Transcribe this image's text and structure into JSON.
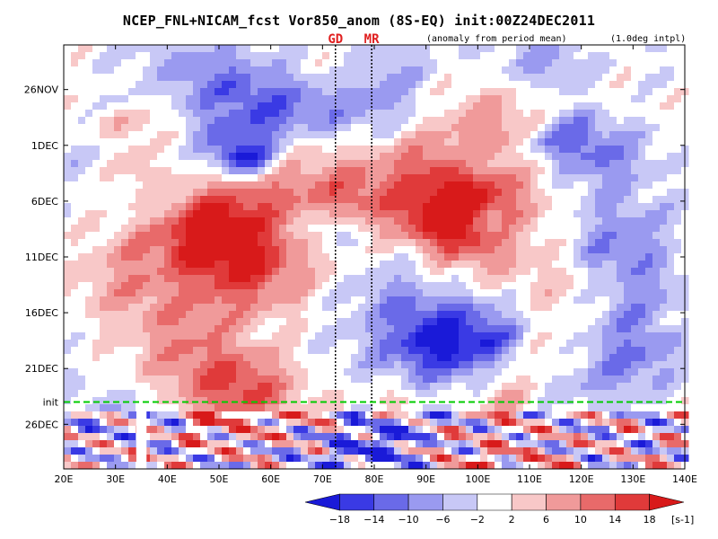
{
  "chart_data": {
    "type": "heatmap",
    "title": "NCEP_FNL+NICAM_fcst Vor850_anom (8S-EQ) init:00Z24DEC2011",
    "subtitle_left": "(anomaly from period mean)",
    "subtitle_right": "(1.0deg intpl)",
    "x_ticks": [
      "20E",
      "30E",
      "40E",
      "50E",
      "60E",
      "70E",
      "80E",
      "90E",
      "100E",
      "110E",
      "120E",
      "130E",
      "140E"
    ],
    "x_range": [
      20,
      140
    ],
    "y_ticks": [
      "26NOV",
      "1DEC",
      "6DEC",
      "11DEC",
      "16DEC",
      "21DEC",
      "26DEC"
    ],
    "y_tick_day_offsets": [
      0,
      5,
      10,
      15,
      20,
      25,
      30
    ],
    "y_range_day_offsets": [
      -4,
      34
    ],
    "init": {
      "label": "init",
      "day_offset": 28
    },
    "markers": [
      {
        "label": "GD",
        "lon": 72.5
      },
      {
        "label": "MR",
        "lon": 79.5
      }
    ],
    "colorbar": {
      "levels": [
        "-18",
        "-14",
        "-10",
        "-6",
        "-2",
        "2",
        "6",
        "10",
        "14",
        "18"
      ],
      "colors": [
        "#1a1ad8",
        "#3a3ae4",
        "#6a6ae8",
        "#9a9af0",
        "#c8c8f6",
        "#ffffff",
        "#f8c8c8",
        "#f09a9a",
        "#e86a6a",
        "#e03a3a",
        "#d81a1a"
      ],
      "unit": "[s-1]"
    },
    "colors": {
      "init_line": "#00cc00",
      "marker_text": "#e02020"
    },
    "missing_band_lon": [
      34,
      36
    ]
  }
}
